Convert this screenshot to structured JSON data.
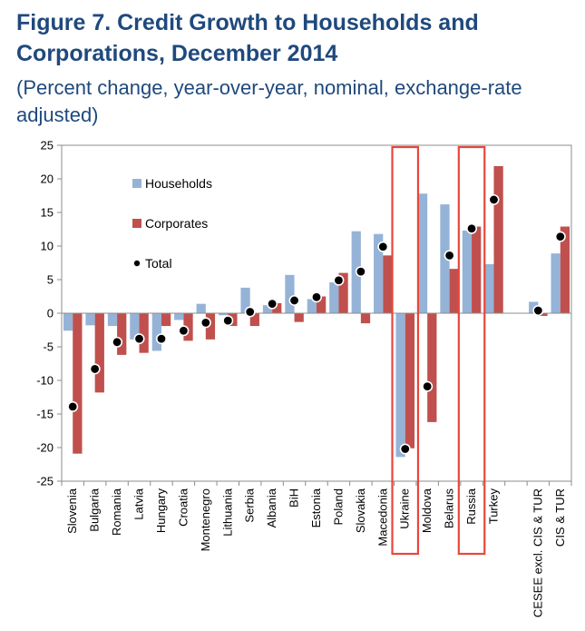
{
  "figure": {
    "title": "Figure 7. Credit Growth to Households and Corporations, December 2014",
    "subtitle": "(Percent change, year-over-year, nominal, exchange-rate adjusted)"
  },
  "chart_data": {
    "type": "bar",
    "title": "Figure 7. Credit Growth to Households and Corporations, December 2014",
    "subtitle": "(Percent change, year-over-year, nominal, exchange-rate adjusted)",
    "xlabel": "",
    "ylabel": "",
    "ylim": [
      -25,
      25
    ],
    "yticks": [
      -25,
      -20,
      -15,
      -10,
      -5,
      0,
      5,
      10,
      15,
      20,
      25
    ],
    "categories": [
      "Slovenia",
      "Bulgaria",
      "Romania",
      "Latvia",
      "Hungary",
      "Croatia",
      "Montenegro",
      "Lithuania",
      "Serbia",
      "Albania",
      "BiH",
      "Estonia",
      "Poland",
      "Slovakia",
      "Macedonia",
      "Ukraine",
      "Moldova",
      "Belarus",
      "Russia",
      "Turkey",
      "",
      "CESEE excl. CIS & TUR",
      "CIS & TUR"
    ],
    "series": [
      {
        "name": "Households",
        "kind": "bar",
        "color": "#95b3d7",
        "values": [
          -2.6,
          -1.8,
          -1.9,
          -3.9,
          -5.6,
          -1.0,
          1.4,
          -0.3,
          3.8,
          1.2,
          5.7,
          2.1,
          4.6,
          12.2,
          11.8,
          -21.4,
          17.8,
          16.2,
          12.3,
          7.3,
          null,
          1.7,
          8.9
        ]
      },
      {
        "name": "Corporates",
        "kind": "bar",
        "color": "#c0504d",
        "values": [
          -20.9,
          -11.8,
          -6.2,
          -5.9,
          -1.9,
          -4.1,
          -3.9,
          -1.9,
          -1.9,
          1.5,
          -1.3,
          2.5,
          6.0,
          -1.5,
          8.6,
          -20.1,
          -16.2,
          6.6,
          12.9,
          21.9,
          null,
          -0.4,
          12.9
        ]
      },
      {
        "name": "Total",
        "kind": "marker",
        "color": "#000000",
        "values": [
          -13.9,
          -8.3,
          -4.3,
          -3.8,
          -3.8,
          -2.6,
          -1.4,
          -1.1,
          0.2,
          1.4,
          1.9,
          2.4,
          4.9,
          6.2,
          9.9,
          -20.2,
          -10.9,
          8.6,
          12.6,
          16.9,
          null,
          0.4,
          11.4
        ]
      }
    ],
    "highlight_boxes": [
      "Ukraine",
      "Russia"
    ],
    "highlight_color": "#e8473b",
    "legend": {
      "placement": "top-left",
      "entries": [
        "Households",
        "Corporates",
        "Total"
      ]
    }
  }
}
